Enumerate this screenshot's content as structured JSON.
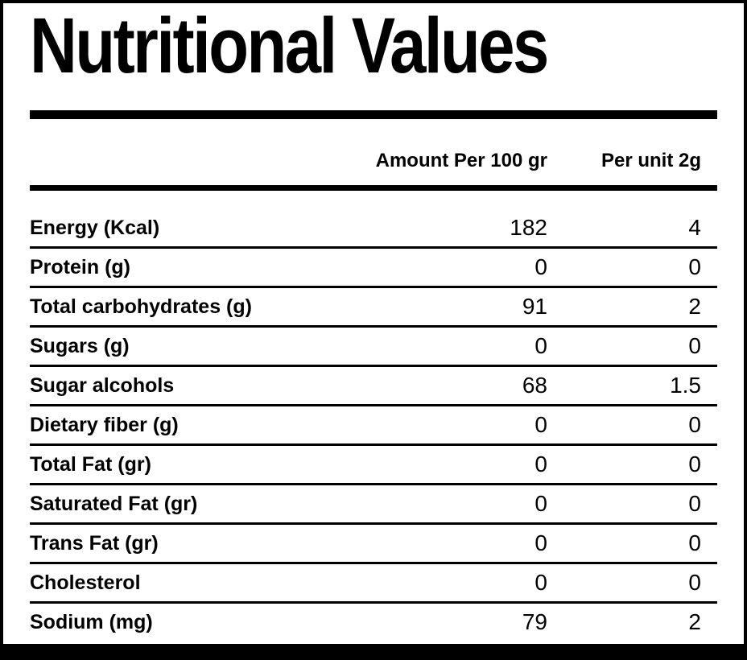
{
  "title": "Nutritional Values",
  "table": {
    "header": {
      "amount_per_100": "Amount Per 100 gr",
      "per_unit": "Per unit 2g"
    },
    "rows": [
      {
        "label": "Energy (Kcal)",
        "per_100": "182",
        "per_unit": "4"
      },
      {
        "label": "Protein (g)",
        "per_100": "0",
        "per_unit": "0"
      },
      {
        "label": "Total carbohydrates (g)",
        "per_100": "91",
        "per_unit": "2"
      },
      {
        "label": "Sugars (g)",
        "per_100": "0",
        "per_unit": "0"
      },
      {
        "label": "Sugar alcohols",
        "per_100": "68",
        "per_unit": "1.5"
      },
      {
        "label": "Dietary fiber (g)",
        "per_100": "0",
        "per_unit": "0"
      },
      {
        "label": "Total Fat (gr)",
        "per_100": "0",
        "per_unit": "0"
      },
      {
        "label": "Saturated Fat (gr)",
        "per_100": "0",
        "per_unit": "0"
      },
      {
        "label": "Trans Fat (gr)",
        "per_100": "0",
        "per_unit": "0"
      },
      {
        "label": "Cholesterol",
        "per_100": "0",
        "per_unit": "0"
      },
      {
        "label": "Sodium (mg)",
        "per_100": "79",
        "per_unit": "2"
      }
    ]
  },
  "colors": {
    "ink": "#000000",
    "paper": "#ffffff"
  }
}
